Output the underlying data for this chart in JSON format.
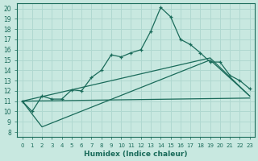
{
  "xlabel": "Humidex (Indice chaleur)",
  "bg_color": "#c8e8e0",
  "grid_color": "#b0d8d0",
  "line_color": "#1a6b5a",
  "xlim": [
    -0.5,
    23.5
  ],
  "ylim": [
    7.5,
    20.5
  ],
  "xticks": [
    0,
    1,
    2,
    3,
    4,
    5,
    6,
    7,
    8,
    9,
    10,
    11,
    12,
    13,
    14,
    15,
    16,
    17,
    18,
    19,
    20,
    21,
    22,
    23
  ],
  "yticks": [
    8,
    9,
    10,
    11,
    12,
    13,
    14,
    15,
    16,
    17,
    18,
    19,
    20
  ],
  "main_curve_x": [
    0,
    1,
    2,
    3,
    4,
    5,
    6,
    7,
    8,
    9,
    10,
    11,
    12,
    13,
    14,
    15,
    16,
    17,
    18,
    19,
    20,
    21,
    22,
    23
  ],
  "main_curve_y": [
    11.0,
    10.0,
    11.5,
    11.2,
    11.2,
    12.1,
    12.0,
    13.3,
    14.0,
    15.5,
    15.3,
    15.7,
    16.0,
    17.8,
    20.1,
    19.2,
    17.0,
    16.5,
    15.7,
    14.8,
    14.8,
    13.5,
    13.0,
    12.2
  ],
  "line1_x": [
    0,
    23
  ],
  "line1_y": [
    11.0,
    11.3
  ],
  "line2_x": [
    0,
    19,
    23
  ],
  "line2_y": [
    11.0,
    15.2,
    11.5
  ],
  "line3_x": [
    0,
    2,
    19,
    23
  ],
  "line3_y": [
    11.0,
    8.5,
    15.0,
    11.5
  ]
}
